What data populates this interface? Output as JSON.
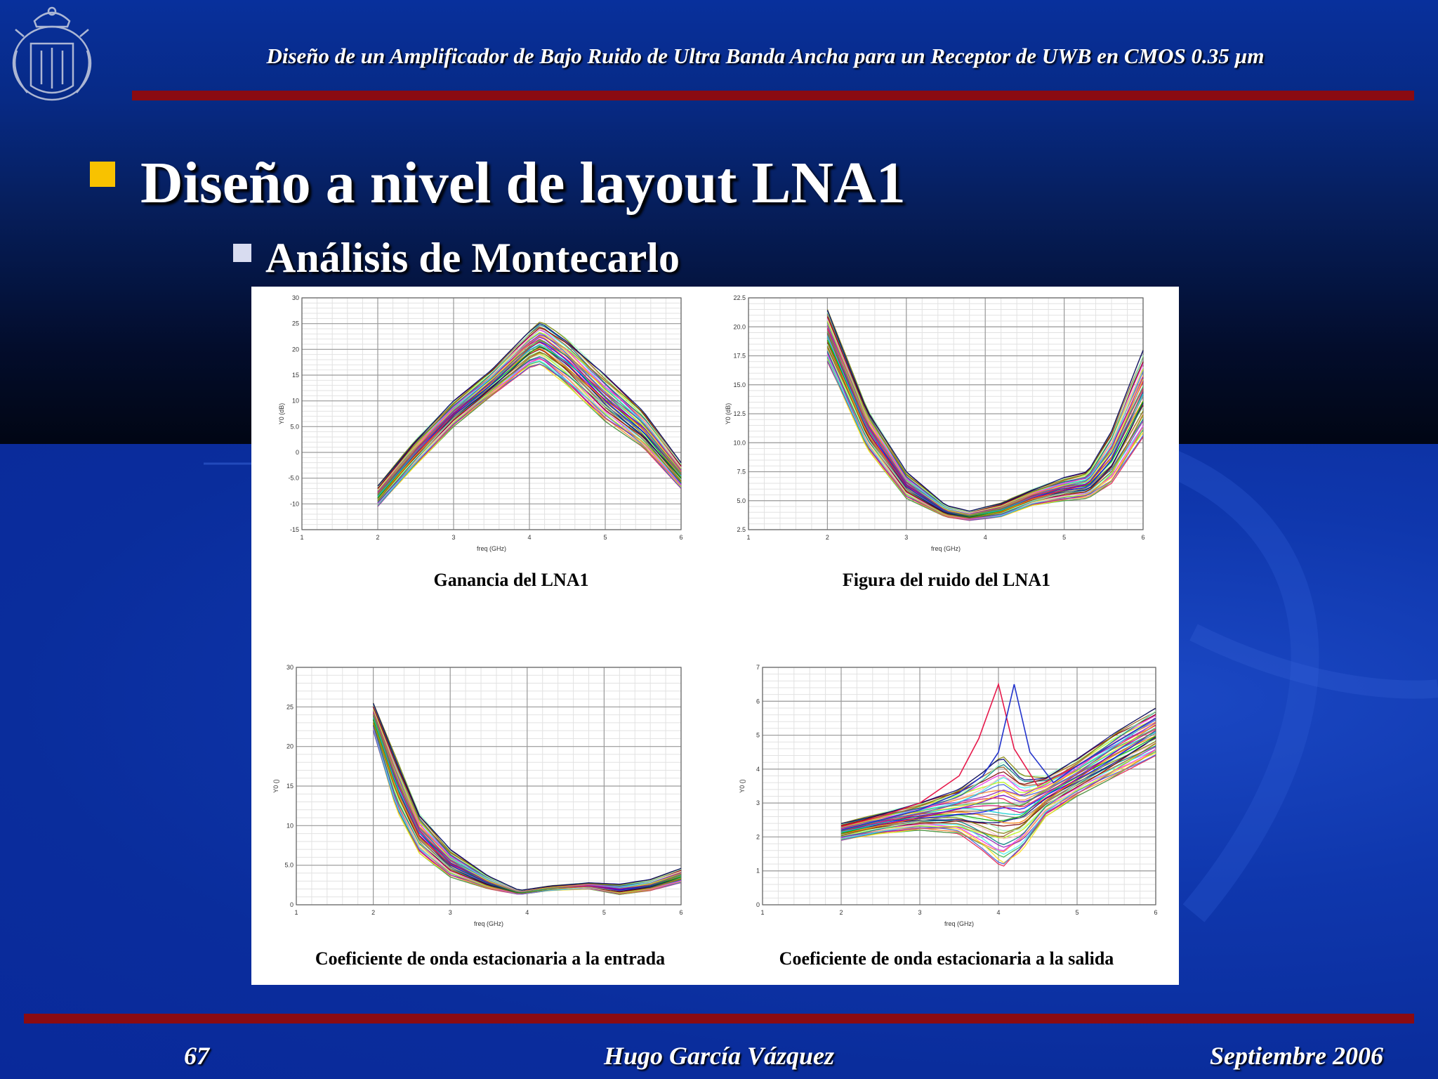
{
  "header": {
    "title": "Diseño de un Amplificador de Bajo Ruido de Ultra Banda Ancha para un Receptor de UWB en CMOS 0.35 µm"
  },
  "slide": {
    "title": "Diseño a nivel de layout LNA1",
    "subtitle": "Análisis de Montecarlo"
  },
  "footer": {
    "page": "67",
    "author": "Hugo García Vázquez",
    "date": "Septiembre 2006"
  },
  "colors": {
    "accent_bar": "#8a0b12",
    "bullet_main": "#f8c200",
    "bullet_sub": "#d8dcf0"
  },
  "chart_data": [
    {
      "type": "line",
      "title": "Ganancia del LNA1",
      "xlabel": "freq (GHz)",
      "ylabel": "Y0 (dB)",
      "xlim": [
        1,
        6
      ],
      "ylim": [
        -15,
        30
      ],
      "xticks": [
        "1",
        "2",
        "3",
        "4",
        "5",
        "6"
      ],
      "yticks": [
        "-15",
        "-10",
        "-5.0",
        "0",
        "5.0",
        "10",
        "15",
        "20",
        "25",
        "30"
      ],
      "grid": true,
      "montecarlo_runs": 40,
      "envelope": {
        "x": [
          2,
          2.5,
          3,
          3.5,
          4,
          4.15,
          4.5,
          5,
          5.5,
          6
        ],
        "low": [
          -10.5,
          -2.5,
          5,
          11,
          16.5,
          17,
          13,
          6,
          1,
          -7
        ],
        "high": [
          -6.5,
          2.5,
          10,
          16,
          23.5,
          25.5,
          22,
          15,
          8,
          -2
        ]
      }
    },
    {
      "type": "line",
      "title": "Figura del ruido del LNA1",
      "xlabel": "freq (GHz)",
      "ylabel": "Y0 (dB)",
      "xlim": [
        1,
        6
      ],
      "ylim": [
        2.5,
        22.5
      ],
      "xticks": [
        "1",
        "2",
        "3",
        "4",
        "5",
        "6"
      ],
      "yticks": [
        "2.5",
        "5.0",
        "7.5",
        "10.0",
        "12.5",
        "15.0",
        "17.5",
        "20.0",
        "22.5"
      ],
      "grid": true,
      "montecarlo_runs": 40,
      "envelope": {
        "x": [
          2,
          2.5,
          3,
          3.5,
          3.8,
          4.2,
          4.6,
          5,
          5.3,
          5.6,
          6
        ],
        "low": [
          17,
          9.5,
          5.2,
          3.6,
          3.3,
          3.6,
          4.6,
          5.0,
          5.2,
          6.5,
          10.5
        ],
        "high": [
          21.5,
          13,
          7.5,
          4.6,
          4.1,
          4.8,
          6.0,
          7.0,
          7.5,
          11,
          18
        ]
      }
    },
    {
      "type": "line",
      "title": "Coeficiente de onda estacionaria a la entrada",
      "xlabel": "freq (GHz)",
      "ylabel": "Y0 ()",
      "xlim": [
        1,
        6
      ],
      "ylim": [
        0,
        30
      ],
      "xticks": [
        "1",
        "2",
        "3",
        "4",
        "5",
        "6"
      ],
      "yticks": [
        "0",
        "5.0",
        "10",
        "15",
        "20",
        "25",
        "30"
      ],
      "grid": true,
      "montecarlo_runs": 40,
      "envelope": {
        "x": [
          2,
          2.3,
          2.6,
          3,
          3.5,
          3.9,
          4.3,
          4.8,
          5.2,
          5.6,
          6
        ],
        "low": [
          22,
          12,
          6.5,
          3.5,
          2.0,
          1.3,
          1.8,
          2.0,
          1.3,
          1.8,
          2.8
        ],
        "high": [
          25.5,
          18.5,
          11.5,
          7.0,
          3.6,
          1.8,
          2.4,
          2.8,
          2.6,
          3.2,
          4.6
        ]
      }
    },
    {
      "type": "line",
      "title": "Coeficiente de onda estacionaria a la salida",
      "xlabel": "freq (GHz)",
      "ylabel": "Y0 ()",
      "xlim": [
        1,
        6
      ],
      "ylim": [
        0,
        7
      ],
      "xticks": [
        "1",
        "2",
        "3",
        "4",
        "5",
        "6"
      ],
      "yticks": [
        "0",
        "1",
        "2",
        "3",
        "4",
        "5",
        "6",
        "7"
      ],
      "grid": true,
      "montecarlo_runs": 40,
      "envelope": {
        "x": [
          2,
          2.5,
          3,
          3.5,
          3.8,
          4.05,
          4.3,
          4.6,
          5,
          5.5,
          6
        ],
        "low": [
          1.9,
          2.1,
          2.2,
          2.1,
          1.6,
          1.1,
          1.6,
          2.6,
          3.2,
          3.8,
          4.4
        ],
        "high": [
          2.4,
          2.7,
          3.0,
          3.4,
          3.9,
          4.4,
          3.8,
          3.8,
          4.3,
          5.1,
          5.8
        ]
      },
      "outliers": [
        {
          "x": [
            2,
            2.5,
            3,
            3.5,
            3.75,
            4.0,
            4.2,
            4.5,
            5,
            5.5,
            6
          ],
          "y": [
            2.3,
            2.6,
            3.0,
            3.8,
            4.9,
            6.5,
            4.6,
            3.5,
            4.1,
            4.8,
            5.5
          ]
        },
        {
          "x": [
            2,
            2.5,
            3,
            3.5,
            3.8,
            4.0,
            4.2,
            4.4,
            4.7,
            5,
            5.5,
            6
          ],
          "y": [
            2.2,
            2.5,
            2.8,
            3.3,
            3.8,
            4.5,
            6.5,
            4.5,
            3.6,
            4.1,
            4.8,
            5.5
          ]
        }
      ]
    }
  ]
}
